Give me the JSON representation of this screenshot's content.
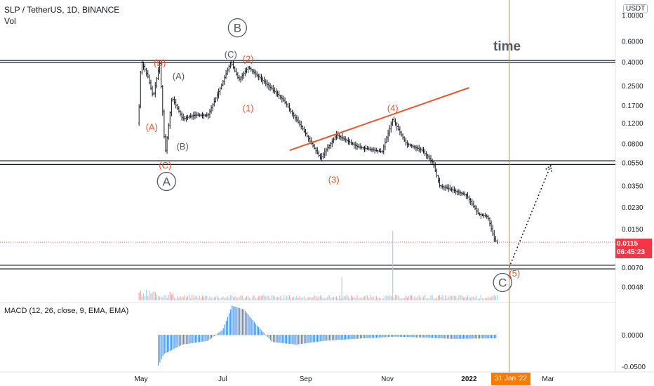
{
  "header": {
    "symbol_line": "SLP / TetherUS, 1D, BINANCE",
    "volume_label": "Vol"
  },
  "macd_header": "MACD (12, 26, close, 9, EMA, EMA)",
  "annotation_time": "time",
  "currency_badge": "USDT",
  "price_badge": {
    "price": "0.0115",
    "countdown": "06:45:23"
  },
  "cursor_date_badge": "31 Jan '22",
  "colors": {
    "wave_labels": "#e8542b",
    "trend_line": "#e8542b",
    "cursor_line": "#f57c00",
    "bars": "#131722",
    "macd_hist": "#4a90e2"
  },
  "chart_data": [
    {
      "type": "ohlc",
      "title": "SLP / TetherUS, 1D, BINANCE",
      "y_scale": "log",
      "y_ticks": [
        "1.0000",
        "0.6000",
        "0.4000",
        "0.2500",
        "0.1700",
        "0.1200",
        "0.0800",
        "0.0550",
        "0.0350",
        "0.0230",
        "0.0150",
        "0.0070",
        "0.0048"
      ],
      "x_ticks": [
        "May",
        "Jul",
        "Sep",
        "Nov",
        "2022",
        "Mar"
      ],
      "last_price": 0.0115,
      "price_path": [
        {
          "date": "2021-04-29",
          "price": 0.12
        },
        {
          "date": "2021-05-01",
          "price": 0.41
        },
        {
          "date": "2021-05-06",
          "price": 0.3
        },
        {
          "date": "2021-05-10",
          "price": 0.2
        },
        {
          "date": "2021-05-15",
          "price": 0.39
        },
        {
          "date": "2021-05-19",
          "price": 0.065
        },
        {
          "date": "2021-05-24",
          "price": 0.2
        },
        {
          "date": "2021-06-01",
          "price": 0.13
        },
        {
          "date": "2021-06-10",
          "price": 0.14
        },
        {
          "date": "2021-06-20",
          "price": 0.14
        },
        {
          "date": "2021-06-30",
          "price": 0.25
        },
        {
          "date": "2021-07-07",
          "price": 0.4
        },
        {
          "date": "2021-07-13",
          "price": 0.28
        },
        {
          "date": "2021-07-20",
          "price": 0.36
        },
        {
          "date": "2021-08-01",
          "price": 0.27
        },
        {
          "date": "2021-08-15",
          "price": 0.19
        },
        {
          "date": "2021-08-29",
          "price": 0.11
        },
        {
          "date": "2021-09-12",
          "price": 0.06
        },
        {
          "date": "2021-09-24",
          "price": 0.095
        },
        {
          "date": "2021-10-10",
          "price": 0.075
        },
        {
          "date": "2021-10-28",
          "price": 0.068
        },
        {
          "date": "2021-11-05",
          "price": 0.13
        },
        {
          "date": "2021-11-15",
          "price": 0.08
        },
        {
          "date": "2021-11-27",
          "price": 0.07
        },
        {
          "date": "2021-12-05",
          "price": 0.055
        },
        {
          "date": "2021-12-10",
          "price": 0.035
        },
        {
          "date": "2021-12-20",
          "price": 0.032
        },
        {
          "date": "2021-12-30",
          "price": 0.029
        },
        {
          "date": "2022-01-08",
          "price": 0.02
        },
        {
          "date": "2022-01-15",
          "price": 0.019
        },
        {
          "date": "2022-01-20",
          "price": 0.012
        },
        {
          "date": "2022-01-22",
          "price": 0.0115
        }
      ],
      "horizontal_zones": [
        {
          "low": 0.395,
          "high": 0.41
        },
        {
          "low": 0.053,
          "high": 0.057
        },
        {
          "low": 0.0068,
          "high": 0.0073
        }
      ],
      "trend_line": [
        {
          "date": "2021-08-20",
          "price": 0.07
        },
        {
          "date": "2022-01-01",
          "price": 0.24
        }
      ],
      "projection_arrow": [
        {
          "date": "2022-01-31",
          "price": 0.007
        },
        {
          "date": "2022-03-03",
          "price": 0.052
        }
      ],
      "wave_labels": [
        {
          "text": "B",
          "circled": true,
          "color": "#545862",
          "date": "2021-07-12",
          "price": 0.78
        },
        {
          "text": "(C)",
          "color": "#545862",
          "date": "2021-07-07",
          "price": 0.46
        },
        {
          "text": "(2)",
          "color": "#e8542b",
          "date": "2021-07-20",
          "price": 0.42
        },
        {
          "text": "(B)",
          "color": "#e8542b",
          "date": "2021-05-15",
          "price": 0.39
        },
        {
          "text": "(A)",
          "color": "#545862",
          "date": "2021-05-29",
          "price": 0.3
        },
        {
          "text": "(1)",
          "color": "#e8542b",
          "date": "2021-07-20",
          "price": 0.16
        },
        {
          "text": "(A)",
          "color": "#e8542b",
          "date": "2021-05-09",
          "price": 0.11
        },
        {
          "text": "(B)",
          "color": "#545862",
          "date": "2021-06-01",
          "price": 0.075
        },
        {
          "text": "(C)",
          "color": "#e8542b",
          "date": "2021-05-19",
          "price": 0.052
        },
        {
          "text": "A",
          "circled": true,
          "color": "#545862",
          "date": "2021-05-20",
          "price": 0.038
        },
        {
          "text": "(4)",
          "color": "#e8542b",
          "date": "2021-11-05",
          "price": 0.16
        },
        {
          "text": "(3)",
          "color": "#e8542b",
          "date": "2021-09-22",
          "price": 0.039
        },
        {
          "text": "C",
          "circled": true,
          "color": "#545862",
          "date": "2022-01-26",
          "price": 0.0052
        },
        {
          "text": "(5)",
          "color": "#e8542b",
          "date": "2022-02-04",
          "price": 0.0062
        }
      ],
      "cursor_date": "31 Jan '22"
    },
    {
      "type": "bar",
      "name": "Vol",
      "description": "Volume histogram, baseline at bottom of price pane",
      "spikes": [
        {
          "date": "2021-11-05",
          "level": 0.9
        },
        {
          "date": "2021-09-28",
          "level": 0.3
        }
      ]
    },
    {
      "type": "bar",
      "name": "MACD (12, 26, close, 9, EMA, EMA)",
      "y_ticks": [
        "0.0000",
        "-0.0500"
      ],
      "ylim": [
        -0.058,
        0.058
      ],
      "histogram_path": [
        {
          "date": "2021-05-14",
          "value": -0.048
        },
        {
          "date": "2021-05-18",
          "value": -0.03
        },
        {
          "date": "2021-06-01",
          "value": -0.015
        },
        {
          "date": "2021-06-20",
          "value": -0.009
        },
        {
          "date": "2021-07-01",
          "value": 0.008
        },
        {
          "date": "2021-07-08",
          "value": 0.046
        },
        {
          "date": "2021-07-17",
          "value": 0.04
        },
        {
          "date": "2021-07-27",
          "value": 0.014
        },
        {
          "date": "2021-08-07",
          "value": -0.011
        },
        {
          "date": "2021-08-25",
          "value": -0.015
        },
        {
          "date": "2021-09-15",
          "value": -0.009
        },
        {
          "date": "2021-10-15",
          "value": -0.005
        },
        {
          "date": "2021-11-07",
          "value": -0.0025
        },
        {
          "date": "2021-11-30",
          "value": -0.004
        },
        {
          "date": "2021-12-20",
          "value": -0.006
        },
        {
          "date": "2022-01-22",
          "value": -0.005
        }
      ]
    }
  ]
}
